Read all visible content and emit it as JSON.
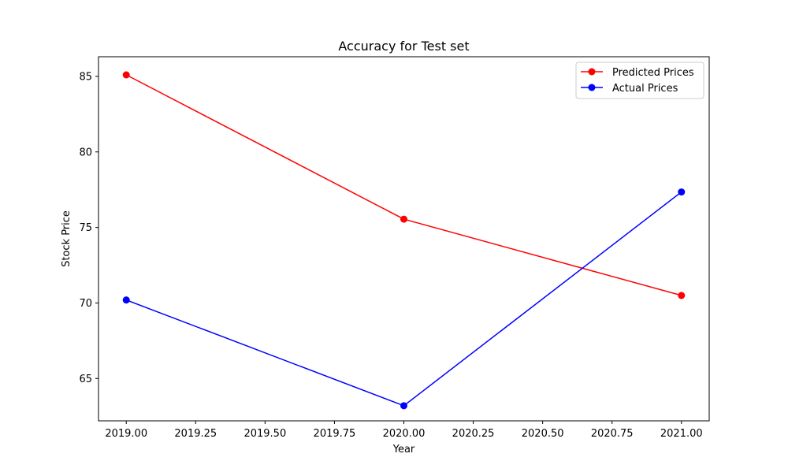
{
  "chart_data": {
    "type": "line",
    "title": "Accuracy for Test set",
    "xlabel": "Year",
    "ylabel": "Stock Price",
    "x": [
      2019,
      2020,
      2021
    ],
    "xlim": [
      2018.9,
      2021.1
    ],
    "ylim": [
      62.2,
      86.3
    ],
    "xticks": [
      2019.0,
      2019.25,
      2019.5,
      2019.75,
      2020.0,
      2020.25,
      2020.5,
      2020.75,
      2021.0
    ],
    "xtick_labels": [
      "2019.00",
      "2019.25",
      "2019.50",
      "2019.75",
      "2020.00",
      "2020.25",
      "2020.50",
      "2020.75",
      "2021.00"
    ],
    "yticks": [
      65,
      70,
      75,
      80,
      85
    ],
    "ytick_labels": [
      "65",
      "70",
      "75",
      "80",
      "85"
    ],
    "grid": false,
    "legend_position": "top-right",
    "series": [
      {
        "name": "Predicted Prices",
        "color": "#ff0000",
        "marker": "circle",
        "values": [
          85.1,
          75.55,
          70.5
        ]
      },
      {
        "name": "Actual Prices",
        "color": "#0000ff",
        "marker": "circle",
        "values": [
          70.2,
          63.2,
          77.35
        ]
      }
    ]
  }
}
